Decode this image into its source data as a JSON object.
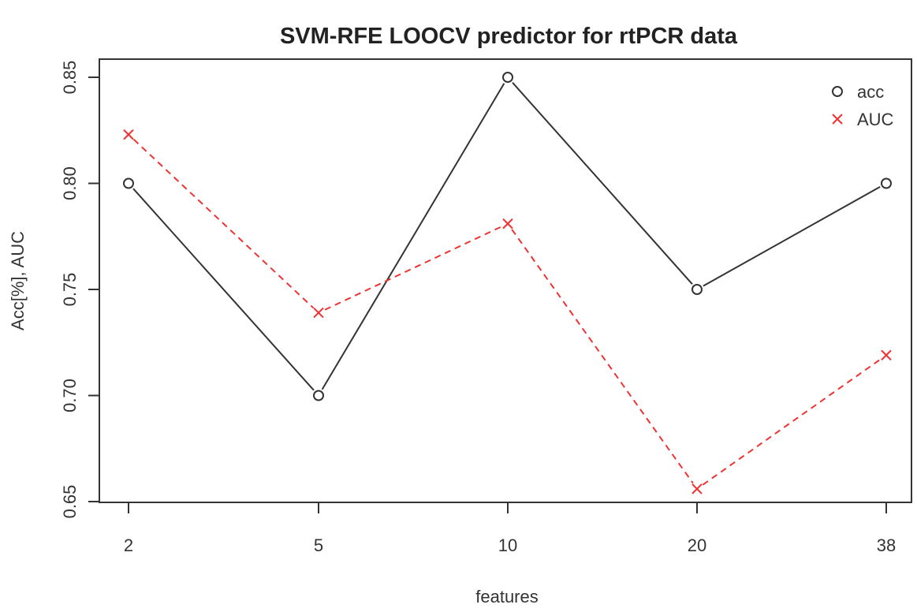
{
  "chart_data": {
    "type": "line",
    "title": "SVM-RFE LOOCV predictor for rtPCR data",
    "xlabel": "features",
    "ylabel": "Acc[%], AUC",
    "categories": [
      "2",
      "5",
      "10",
      "20",
      "38"
    ],
    "ylim": [
      0.65,
      0.85
    ],
    "yticks": [
      "0.65",
      "0.70",
      "0.75",
      "0.80",
      "0.85"
    ],
    "grid": false,
    "legend_position": "top-right",
    "series": [
      {
        "name": "acc",
        "values": [
          0.8,
          0.7,
          0.85,
          0.75,
          0.8
        ],
        "color": "#333333",
        "marker": "circle",
        "line": "solid"
      },
      {
        "name": "AUC",
        "values": [
          0.823,
          0.739,
          0.781,
          0.656,
          0.719
        ],
        "color": "#ee3333",
        "marker": "cross",
        "line": "dashed"
      }
    ]
  }
}
